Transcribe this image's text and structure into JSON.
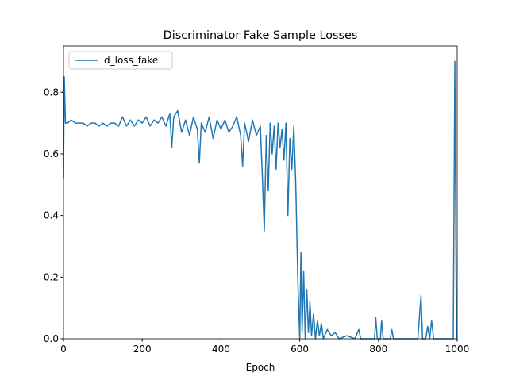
{
  "chart_data": {
    "type": "line",
    "title": "Discriminator Fake Sample Losses",
    "xlabel": "Epoch",
    "x": [
      0,
      2,
      5,
      10,
      20,
      30,
      40,
      50,
      60,
      70,
      80,
      90,
      100,
      110,
      120,
      130,
      140,
      150,
      160,
      170,
      180,
      190,
      200,
      210,
      220,
      230,
      240,
      250,
      260,
      270,
      275,
      280,
      290,
      300,
      310,
      320,
      330,
      340,
      345,
      350,
      360,
      370,
      380,
      390,
      400,
      410,
      420,
      430,
      440,
      450,
      455,
      460,
      470,
      480,
      490,
      500,
      505,
      510,
      515,
      520,
      525,
      530,
      535,
      540,
      545,
      550,
      555,
      560,
      565,
      570,
      575,
      580,
      585,
      590,
      595,
      600,
      603,
      606,
      610,
      614,
      618,
      622,
      626,
      630,
      635,
      640,
      645,
      650,
      655,
      660,
      670,
      680,
      690,
      700,
      720,
      740,
      750,
      755,
      790,
      793,
      797,
      805,
      808,
      812,
      830,
      834,
      838,
      900,
      908,
      912,
      920,
      925,
      930,
      935,
      940,
      990,
      994,
      998,
      1000
    ],
    "series": [
      {
        "name": "d_loss_fake",
        "color": "#1f77b4",
        "values": [
          0.52,
          0.85,
          0.7,
          0.7,
          0.71,
          0.7,
          0.7,
          0.7,
          0.69,
          0.7,
          0.7,
          0.69,
          0.7,
          0.69,
          0.7,
          0.7,
          0.69,
          0.72,
          0.69,
          0.71,
          0.69,
          0.71,
          0.7,
          0.72,
          0.69,
          0.71,
          0.7,
          0.72,
          0.69,
          0.73,
          0.62,
          0.72,
          0.74,
          0.67,
          0.71,
          0.66,
          0.72,
          0.68,
          0.57,
          0.7,
          0.67,
          0.72,
          0.65,
          0.71,
          0.68,
          0.71,
          0.67,
          0.69,
          0.72,
          0.66,
          0.56,
          0.7,
          0.64,
          0.71,
          0.66,
          0.69,
          0.53,
          0.35,
          0.66,
          0.48,
          0.7,
          0.6,
          0.69,
          0.55,
          0.7,
          0.62,
          0.68,
          0.58,
          0.7,
          0.4,
          0.65,
          0.55,
          0.69,
          0.5,
          0.2,
          0.0,
          0.28,
          0.02,
          0.22,
          0.0,
          0.16,
          0.02,
          0.12,
          0.01,
          0.08,
          0.0,
          0.06,
          0.01,
          0.05,
          0.0,
          0.03,
          0.01,
          0.02,
          0.0,
          0.01,
          0.0,
          0.03,
          0.0,
          0.0,
          0.07,
          0.0,
          0.0,
          0.06,
          0.0,
          0.0,
          0.03,
          0.0,
          0.0,
          0.14,
          0.0,
          0.0,
          0.04,
          0.0,
          0.06,
          0.0,
          0.0,
          0.9,
          0.0,
          0.0
        ]
      }
    ],
    "xlim": [
      0,
      1000
    ],
    "ylim": [
      0,
      0.95
    ],
    "xticks": [
      0,
      200,
      400,
      600,
      800,
      1000
    ],
    "yticks": [
      {
        "value": 0,
        "label": "0.0"
      },
      0.2,
      0.4,
      0.6,
      0.8
    ],
    "legend": "upper left"
  }
}
